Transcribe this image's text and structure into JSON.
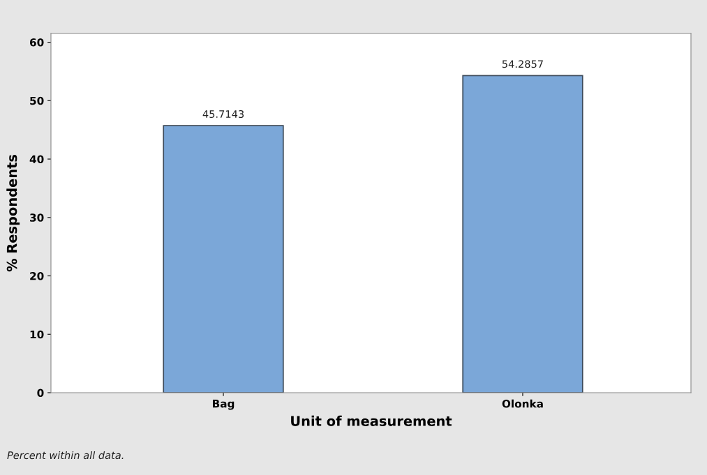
{
  "chart_data": {
    "type": "bar",
    "xlabel": "Unit of measurement",
    "ylabel": "% Respondents",
    "categories": [
      "Bag",
      "Olonka"
    ],
    "values": [
      45.7143,
      54.2857
    ],
    "color": "#7ba7d8",
    "data_labels": true,
    "ylim": [
      0,
      61.5
    ],
    "yticks": [
      0,
      10,
      20,
      30,
      40,
      50,
      60
    ],
    "grid": false,
    "annotations": [
      "Percent within all data."
    ]
  }
}
